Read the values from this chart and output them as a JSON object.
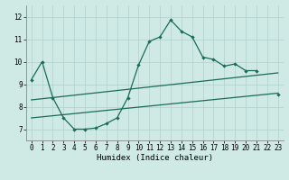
{
  "background_color": "#cfe9e5",
  "grid_color": "#b0d0cc",
  "line_color": "#1a6b5a",
  "x_label": "Humidex (Indice chaleur)",
  "xlim": [
    -0.5,
    23.5
  ],
  "ylim": [
    6.5,
    12.5
  ],
  "yticks": [
    7,
    8,
    9,
    10,
    11,
    12
  ],
  "xticks": [
    0,
    1,
    2,
    3,
    4,
    5,
    6,
    7,
    8,
    9,
    10,
    11,
    12,
    13,
    14,
    15,
    16,
    17,
    18,
    19,
    20,
    21,
    22,
    23
  ],
  "seg1_x": [
    0,
    1,
    2,
    3,
    4,
    5,
    6,
    7,
    8,
    9,
    10,
    11,
    12,
    13,
    14,
    15,
    16,
    17,
    18,
    19,
    20,
    21
  ],
  "seg1_y": [
    9.2,
    10.0,
    8.4,
    7.5,
    7.0,
    7.0,
    7.05,
    7.25,
    7.5,
    8.4,
    9.85,
    10.9,
    11.1,
    11.85,
    11.35,
    11.1,
    10.2,
    10.1,
    9.8,
    9.9,
    9.6,
    9.6
  ],
  "seg2_x": [
    23
  ],
  "seg2_y": [
    8.55
  ],
  "line1_x": [
    0,
    23
  ],
  "line1_y": [
    8.3,
    9.5
  ],
  "line2_x": [
    0,
    23
  ],
  "line2_y": [
    7.5,
    8.6
  ]
}
